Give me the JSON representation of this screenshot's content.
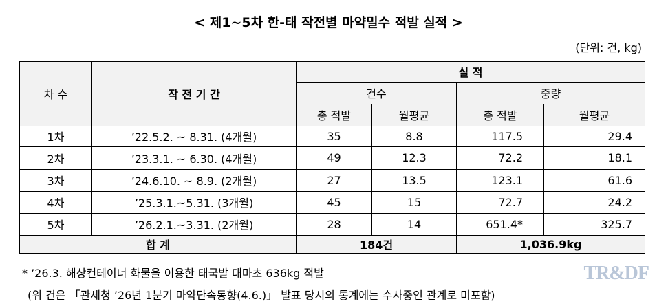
{
  "title": "< 제1~5차 한-태 작전별 마약밀수 적발 실적 >",
  "unit": "(단위: 건, kg)",
  "table": {
    "header": {
      "round": "차 수",
      "period": "작 전 기 간",
      "results": "실 적",
      "count": "건수",
      "weight": "중량",
      "count_total": "총 적발",
      "count_monthly": "월평균",
      "weight_total": "총 적발",
      "weight_monthly": "월평균"
    },
    "rows": [
      [
        "1차",
        "’22.5.2. ~ 8.31. (4개월)",
        "35",
        "8.8",
        "117.5",
        "29.4"
      ],
      [
        "2차",
        "’23.3.1. ~ 6.30. (4개월)",
        "49",
        "12.3",
        "72.2",
        "18.1"
      ],
      [
        "3차",
        "’24.6.10. ~ 8.9. (2개월)",
        "27",
        "13.5",
        "123.1",
        "61.6"
      ],
      [
        "4차",
        "’25.3.1.~5.31. (3개월)",
        "45",
        "15",
        "72.7",
        "24.2"
      ],
      [
        "5차",
        "’26.2.1.~3.31. (2개월)",
        "28",
        "14",
        "651.4*",
        "325.7"
      ]
    ],
    "total": {
      "label": "합 계",
      "count": "184건",
      "weight": "1,036.9kg"
    }
  },
  "notes": [
    "* ’26.3. 해상컨테이너 화물을 이용한 태국발 대마초 636kg 적발",
    "(위 건은 「관세청 ’26년 1분기 마약단속동향(4.6.)」 발표 당시의 통계에는 수사중인 관계로 미포함)"
  ],
  "watermark": "TR&DF"
}
